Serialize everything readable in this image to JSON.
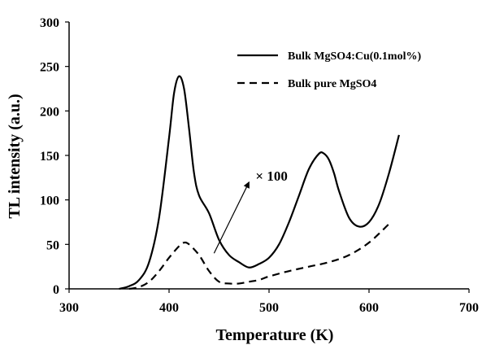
{
  "chart_data": {
    "type": "line",
    "xlabel": "Temperature (K)",
    "ylabel": "TL intensity (a.u.)",
    "xlim": [
      300,
      700
    ],
    "ylim": [
      0,
      300
    ],
    "xticks": [
      300,
      400,
      500,
      600,
      700
    ],
    "yticks": [
      0,
      50,
      100,
      150,
      200,
      250,
      300
    ],
    "grid": false,
    "legend_position": "top-right",
    "series": [
      {
        "name": "Bulk MgSO4:Cu(0.1mol%)",
        "style": "solid",
        "color": "#000000",
        "x": [
          350,
          360,
          370,
          380,
          390,
          400,
          405,
          410,
          415,
          420,
          425,
          430,
          440,
          450,
          460,
          470,
          480,
          490,
          500,
          510,
          520,
          530,
          540,
          550,
          555,
          560,
          565,
          570,
          580,
          590,
          600,
          610,
          620,
          630
        ],
        "y": [
          0,
          3,
          10,
          30,
          80,
          170,
          220,
          239,
          225,
          180,
          130,
          105,
          85,
          55,
          38,
          30,
          24,
          28,
          35,
          50,
          75,
          105,
          135,
          152,
          152,
          145,
          130,
          110,
          80,
          70,
          75,
          95,
          130,
          173
        ]
      },
      {
        "name": "Bulk pure MgSO4",
        "style": "dashed",
        "color": "#000000",
        "x": [
          360,
          370,
          380,
          390,
          400,
          410,
          415,
          420,
          430,
          440,
          450,
          460,
          470,
          480,
          490,
          500,
          520,
          540,
          560,
          580,
          600,
          620
        ],
        "y": [
          0,
          2,
          8,
          20,
          35,
          48,
          52,
          50,
          38,
          20,
          8,
          6,
          6,
          8,
          10,
          14,
          20,
          25,
          30,
          38,
          52,
          73
        ]
      }
    ],
    "annotations": [
      {
        "text": "× 100",
        "from": [
          445,
          40
        ],
        "to": [
          480,
          120
        ]
      }
    ]
  }
}
